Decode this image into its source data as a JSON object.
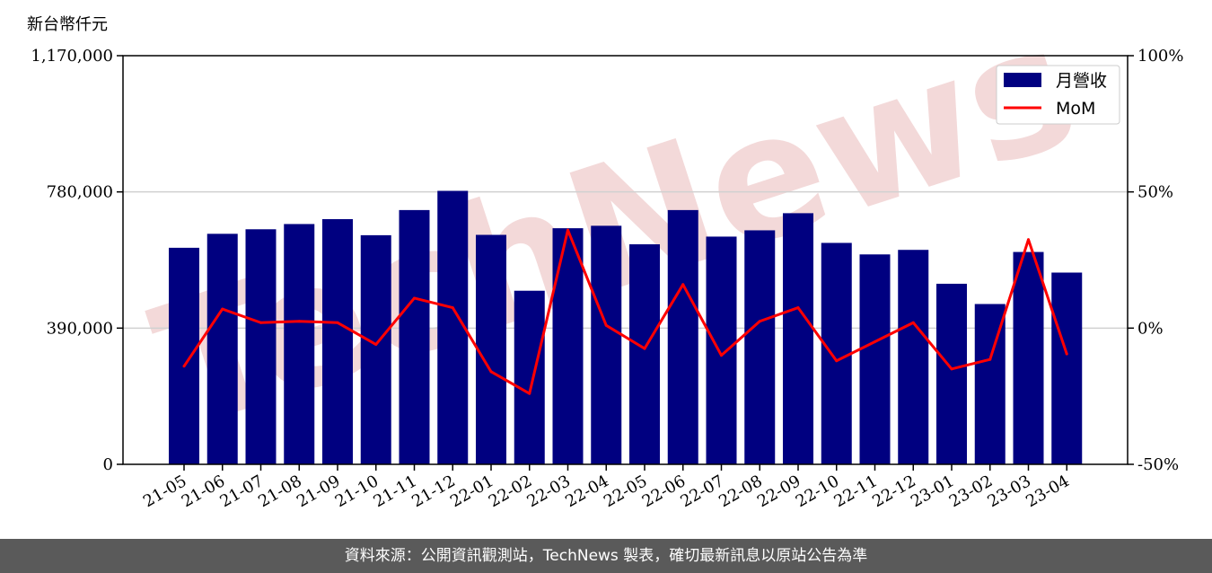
{
  "unit_label": "新台幣仟元",
  "watermark": "TechNews",
  "footer_text": "資料來源：公開資訊觀測站，TechNews 製表，確切最新訊息以原站公告為準",
  "colors": {
    "bar": "#000080",
    "line": "#ff0000",
    "grid": "#d0d0d0",
    "footer_bg": "#5a5a5a",
    "watermark": "#f3d9d9"
  },
  "chart_data": {
    "type": "bar",
    "categories": [
      "21-05",
      "21-06",
      "21-07",
      "21-08",
      "21-09",
      "21-10",
      "21-11",
      "21-12",
      "22-01",
      "22-02",
      "22-03",
      "22-04",
      "22-05",
      "22-06",
      "22-07",
      "22-08",
      "22-09",
      "22-10",
      "22-11",
      "22-12",
      "23-01",
      "23-02",
      "23-03",
      "23-04"
    ],
    "series": [
      {
        "name": "月營收",
        "type": "bar",
        "axis": "left",
        "values": [
          620000,
          660000,
          673000,
          688000,
          702000,
          656000,
          728000,
          783000,
          657000,
          497000,
          676000,
          683000,
          630000,
          728000,
          652000,
          670000,
          719000,
          634000,
          601000,
          614000,
          517000,
          459000,
          608000,
          549000
        ]
      },
      {
        "name": "MoM",
        "type": "line",
        "axis": "right",
        "unit": "%",
        "values": [
          -14,
          7,
          2,
          2.5,
          2,
          -6,
          11,
          7.5,
          -16,
          -24,
          36,
          1,
          -7.5,
          16,
          -10,
          2.5,
          7.5,
          -12,
          -5,
          2,
          -15,
          -11.5,
          32.5,
          -9.5
        ]
      }
    ],
    "left_axis": {
      "ylim": [
        0,
        1170000
      ],
      "ticks": [
        "0",
        "390,000",
        "780,000",
        "1,170,000"
      ]
    },
    "right_axis": {
      "ylim": [
        -50,
        100
      ],
      "ticks": [
        "-50%",
        "0%",
        "50%",
        "100%"
      ]
    },
    "grid": "horizontal",
    "legend_position": "top-right"
  }
}
